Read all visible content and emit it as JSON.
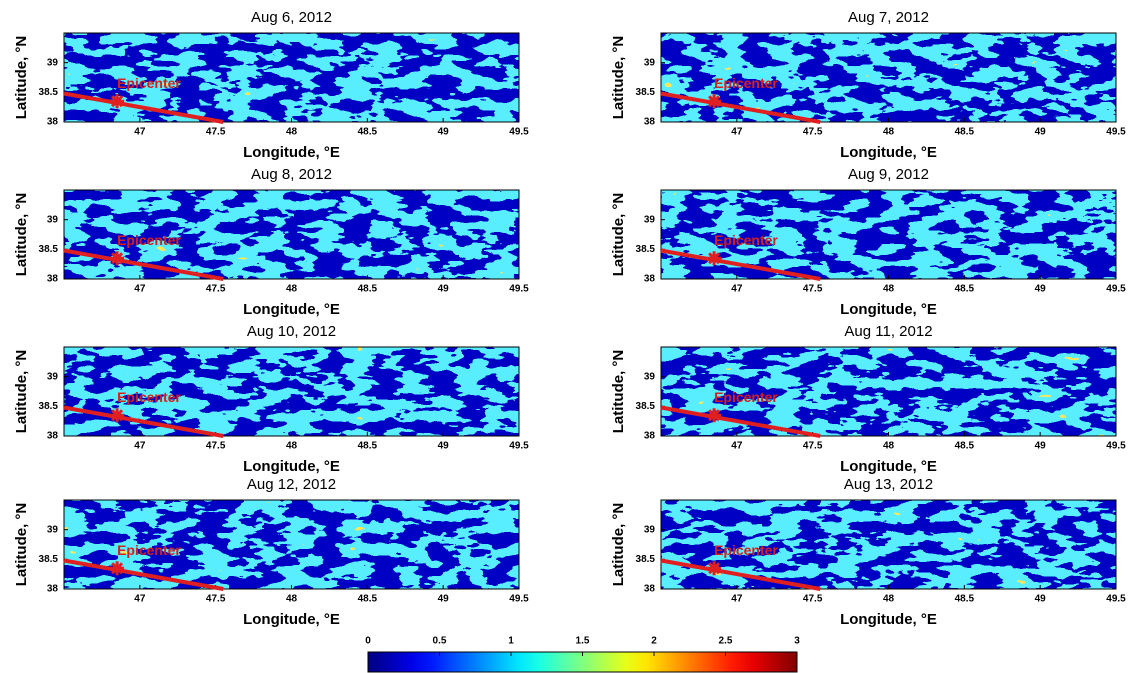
{
  "chart_data": [
    {
      "type": "heatmap",
      "title": "Aug 6, 2012",
      "xlabel": "Longitude, °E",
      "ylabel": "Latitude, °N",
      "xlim": [
        46.5,
        49.5
      ],
      "ylim": [
        38,
        39.5
      ],
      "xticks": [
        47,
        47.5,
        48,
        48.5,
        49,
        49.5
      ],
      "yticks": [
        38,
        38.5,
        39
      ],
      "epicenter": {
        "label": "Epicenter",
        "x": 46.85,
        "y": 38.35
      },
      "fault_line": {
        "x": [
          46.5,
          47.55
        ],
        "y": [
          38.48,
          38.0
        ]
      }
    },
    {
      "type": "heatmap",
      "title": "Aug 7, 2012",
      "xlabel": "Longitude, °E",
      "ylabel": "Latitude, °N",
      "xlim": [
        46.5,
        49.5
      ],
      "ylim": [
        38,
        39.5
      ],
      "xticks": [
        47,
        47.5,
        48,
        48.5,
        49,
        49.5
      ],
      "yticks": [
        38,
        38.5,
        39
      ],
      "epicenter": {
        "label": "Epicenter",
        "x": 46.85,
        "y": 38.35
      },
      "fault_line": {
        "x": [
          46.5,
          47.55
        ],
        "y": [
          38.48,
          38.0
        ]
      }
    },
    {
      "type": "heatmap",
      "title": "Aug 8, 2012",
      "xlabel": "Longitude, °E",
      "ylabel": "Latitude, °N",
      "xlim": [
        46.5,
        49.5
      ],
      "ylim": [
        38,
        39.5
      ],
      "xticks": [
        47,
        47.5,
        48,
        48.5,
        49,
        49.5
      ],
      "yticks": [
        38,
        38.5,
        39
      ],
      "epicenter": {
        "label": "Epicenter",
        "x": 46.85,
        "y": 38.35
      },
      "fault_line": {
        "x": [
          46.5,
          47.55
        ],
        "y": [
          38.48,
          38.0
        ]
      }
    },
    {
      "type": "heatmap",
      "title": "Aug 9, 2012",
      "xlabel": "Longitude, °E",
      "ylabel": "Latitude, °N",
      "xlim": [
        46.5,
        49.5
      ],
      "ylim": [
        38,
        39.5
      ],
      "xticks": [
        47,
        47.5,
        48,
        48.5,
        49,
        49.5
      ],
      "yticks": [
        38,
        38.5,
        39
      ],
      "epicenter": {
        "label": "Epicenter",
        "x": 46.85,
        "y": 38.35
      },
      "fault_line": {
        "x": [
          46.5,
          47.55
        ],
        "y": [
          38.48,
          38.0
        ]
      }
    },
    {
      "type": "heatmap",
      "title": "Aug 10, 2012",
      "xlabel": "Longitude, °E",
      "ylabel": "Latitude, °N",
      "xlim": [
        46.5,
        49.5
      ],
      "ylim": [
        38,
        39.5
      ],
      "xticks": [
        47,
        47.5,
        48,
        48.5,
        49,
        49.5
      ],
      "yticks": [
        38,
        38.5,
        39
      ],
      "epicenter": {
        "label": "Epicenter",
        "x": 46.85,
        "y": 38.35
      },
      "fault_line": {
        "x": [
          46.5,
          47.55
        ],
        "y": [
          38.48,
          38.0
        ]
      }
    },
    {
      "type": "heatmap",
      "title": "Aug 11, 2012",
      "xlabel": "Longitude, °E",
      "ylabel": "Latitude, °N",
      "xlim": [
        46.5,
        49.5
      ],
      "ylim": [
        38,
        39.5
      ],
      "xticks": [
        47,
        47.5,
        48,
        48.5,
        49,
        49.5
      ],
      "yticks": [
        38,
        38.5,
        39
      ],
      "epicenter": {
        "label": "Epicenter",
        "x": 46.85,
        "y": 38.35
      },
      "fault_line": {
        "x": [
          46.5,
          47.55
        ],
        "y": [
          38.48,
          38.0
        ]
      }
    },
    {
      "type": "heatmap",
      "title": "Aug 12, 2012",
      "xlabel": "Longitude, °E",
      "ylabel": "Latitude, °N",
      "xlim": [
        46.5,
        49.5
      ],
      "ylim": [
        38,
        39.5
      ],
      "xticks": [
        47,
        47.5,
        48,
        48.5,
        49,
        49.5
      ],
      "yticks": [
        38,
        38.5,
        39
      ],
      "epicenter": {
        "label": "Epicenter",
        "x": 46.85,
        "y": 38.35
      },
      "fault_line": {
        "x": [
          46.5,
          47.55
        ],
        "y": [
          38.48,
          38.0
        ]
      }
    },
    {
      "type": "heatmap",
      "title": "Aug 13, 2012",
      "xlabel": "Longitude, °E",
      "ylabel": "Latitude, °N",
      "xlim": [
        46.5,
        49.5
      ],
      "ylim": [
        38,
        39.5
      ],
      "xticks": [
        47,
        47.5,
        48,
        48.5,
        49,
        49.5
      ],
      "yticks": [
        38,
        38.5,
        39
      ],
      "epicenter": {
        "label": "Epicenter",
        "x": 46.85,
        "y": 38.35
      },
      "fault_line": {
        "x": [
          46.5,
          47.55
        ],
        "y": [
          38.48,
          38.0
        ]
      }
    }
  ],
  "colorbar": {
    "colormap": "jet",
    "lim": [
      0,
      3
    ],
    "ticks": [
      0,
      0.5,
      1,
      1.5,
      2,
      2.5,
      3
    ]
  }
}
